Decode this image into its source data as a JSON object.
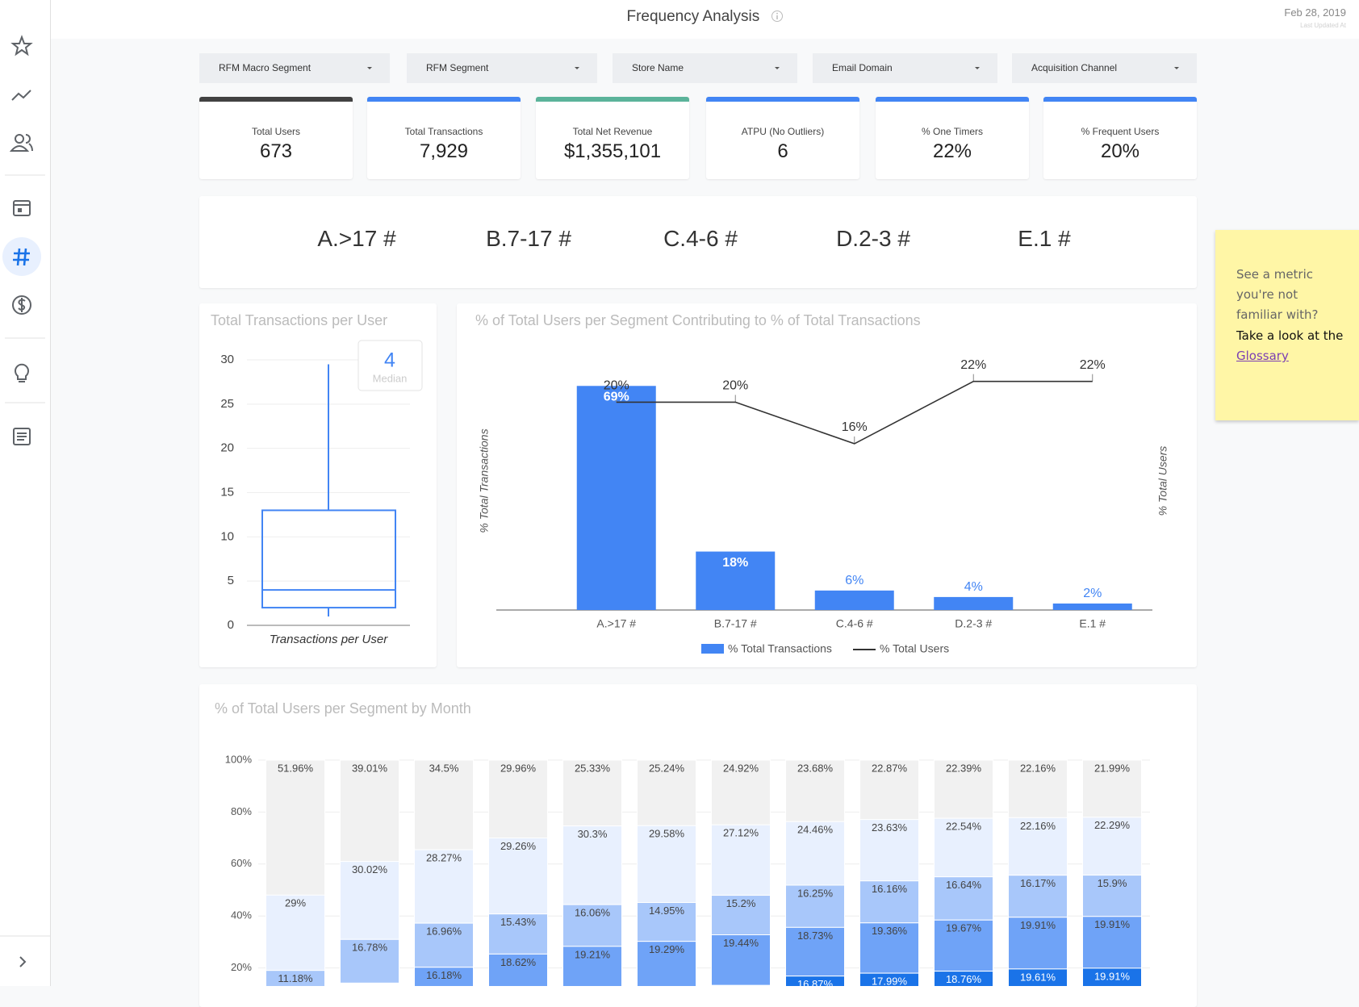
{
  "header": {
    "title": "Frequency Analysis",
    "date": "Feb 28, 2019",
    "updated": "Last Updated At"
  },
  "filters": [
    "RFM Macro Segment",
    "RFM Segment",
    "Store Name",
    "Email Domain",
    "Acquisition Channel"
  ],
  "scorecards": [
    {
      "label": "Total Users",
      "value": "673"
    },
    {
      "label": "Total Transactions",
      "value": "7,929"
    },
    {
      "label": "Total Net Revenue",
      "value": "$1,355,101"
    },
    {
      "label": "ATPU (No Outliers)",
      "value": "6"
    },
    {
      "label": "% One Timers",
      "value": "22%"
    },
    {
      "label": "% Frequent Users",
      "value": "20%"
    }
  ],
  "segments": [
    "A.>17 #",
    "B.7-17 #",
    "C.4-6 #",
    "D.2-3 #",
    "E.1 #"
  ],
  "sticky_note": {
    "lines": [
      "See a metric",
      "you're not",
      "familiar with?",
      "Take a look at the"
    ],
    "link": "Glossary"
  },
  "chart_data": [
    {
      "type": "box",
      "title": "Total Transactions per User",
      "x_label": "Transactions per User",
      "color": "#4285f4",
      "ylim": [
        0,
        30
      ],
      "yticks": [
        0,
        5,
        10,
        15,
        20,
        25,
        30
      ],
      "grid": true,
      "min": 1,
      "q1": 2,
      "median": 4,
      "q3": 13,
      "max": 29.5,
      "median_label": "Median"
    },
    {
      "type": "combo",
      "title": "% of Total Users per Segment Contributing to % of Total Transactions",
      "categories": [
        "A.>17 #",
        "B.7-17 #",
        "C.4-6 #",
        "D.2-3 #",
        "E.1 #"
      ],
      "ylabel": "% Total Transactions",
      "y2label": "% Total Users",
      "ylim": [
        0,
        80
      ],
      "y2lim": [
        0,
        25
      ],
      "series": [
        {
          "name": "% Total Transactions",
          "type": "bar",
          "color": "#4285f4",
          "values": [
            69,
            18,
            6,
            4,
            2
          ],
          "value_labels": [
            "69%",
            "18%",
            "6%",
            "4%",
            "2%"
          ]
        },
        {
          "name": "% Total Users",
          "type": "line",
          "axis": "y2",
          "color": "#333333",
          "values": [
            20,
            20,
            16,
            22,
            22
          ],
          "value_labels": [
            "20%",
            "20%",
            "16%",
            "22%",
            "22%"
          ]
        }
      ]
    },
    {
      "type": "stacked_bar",
      "title": "% of Total Users per Segment by Month",
      "categories": [
        null,
        null,
        null,
        null,
        null,
        null,
        null,
        null,
        null,
        null,
        null,
        null
      ],
      "ylim": [
        0,
        100
      ],
      "yticks": [
        {
          "value": 100,
          "label": "100%"
        },
        {
          "value": 80,
          "label": "80%"
        },
        {
          "value": 60,
          "label": "60%"
        },
        {
          "value": 40,
          "label": "40%"
        },
        {
          "value": 20,
          "label": "20%"
        }
      ],
      "grid": true,
      "series": [
        {
          "color": "#f1f1f1",
          "values": [
            51.96,
            39.01,
            34.5,
            29.96,
            25.33,
            25.24,
            24.92,
            23.68,
            22.87,
            22.39,
            22.16,
            21.99
          ],
          "value_labels": [
            "51.96%",
            "39.01%",
            "34.5%",
            "29.96%",
            "25.33%",
            "25.24%",
            "24.92%",
            "23.68%",
            "22.87%",
            "22.39%",
            "22.16%",
            "21.99%"
          ]
        },
        {
          "color": "#e8f0fe",
          "values": [
            29,
            30.02,
            28.27,
            29.26,
            30.3,
            29.58,
            27.12,
            24.46,
            23.63,
            22.54,
            22.16,
            22.29
          ],
          "value_labels": [
            "29%",
            "30.02%",
            "28.27%",
            "29.26%",
            "30.3%",
            "29.58%",
            "27.12%",
            "24.46%",
            "23.63%",
            "22.54%",
            "22.16%",
            "22.29%"
          ]
        },
        {
          "color": "#a8c7fa",
          "values": [
            11.18,
            16.78,
            16.96,
            15.43,
            16.06,
            14.95,
            15.2,
            16.25,
            16.16,
            16.64,
            16.17,
            15.9
          ],
          "value_labels": [
            "11.18%",
            "16.78%",
            "16.96%",
            "15.43%",
            "16.06%",
            "14.95%",
            "15.2%",
            "16.25%",
            "16.16%",
            "16.64%",
            "16.17%",
            "15.9%"
          ]
        },
        {
          "color": "#6fa3f7",
          "values": [
            null,
            null,
            16.18,
            18.62,
            19.21,
            19.29,
            19.44,
            18.73,
            19.36,
            19.67,
            19.91,
            19.91
          ],
          "value_labels": [
            null,
            null,
            "16.18%",
            "18.62%",
            "19.21%",
            "19.29%",
            "19.44%",
            "18.73%",
            "19.36%",
            "19.67%",
            "19.91%",
            "19.91%"
          ]
        },
        {
          "color": "#1a73e8",
          "values": [
            null,
            null,
            null,
            null,
            null,
            null,
            null,
            16.87,
            17.99,
            18.76,
            19.61,
            19.91
          ],
          "value_labels": [
            null,
            null,
            null,
            null,
            null,
            null,
            null,
            "16.87%",
            "17.99%",
            "18.76%",
            "19.61%",
            "19.91%"
          ]
        }
      ]
    }
  ]
}
